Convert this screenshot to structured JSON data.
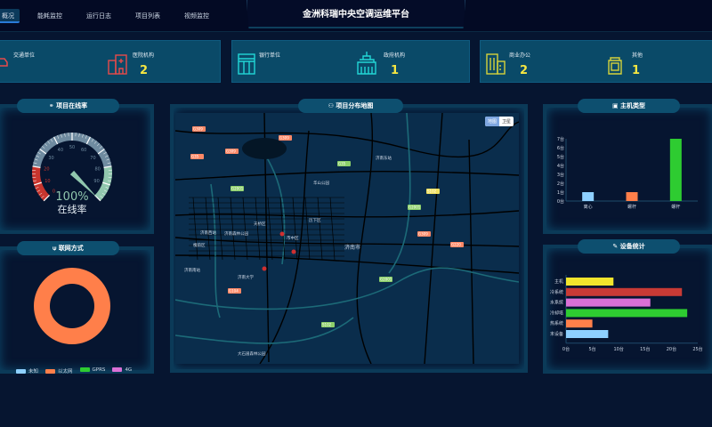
{
  "header": {
    "title": "金洲科瑞中央空调运维平台",
    "tabs": [
      "概况",
      "能耗监控",
      "运行日志",
      "项目列表",
      "视频监控"
    ],
    "active_tab": "概况"
  },
  "stats": [
    {
      "label": "交通单位",
      "value": "",
      "icon": "car-icon",
      "color": "#e84a4a"
    },
    {
      "label": "医院机构",
      "value": "2",
      "icon": "hospital-icon",
      "color": "#e84a4a"
    },
    {
      "label": "银行单位",
      "value": "",
      "icon": "bank-icon",
      "color": "#22d6d6"
    },
    {
      "label": "政府机构",
      "value": "1",
      "icon": "government-icon",
      "color": "#22d6d6"
    },
    {
      "label": "商业办公",
      "value": "2",
      "icon": "office-icon",
      "color": "#d6d23a"
    },
    {
      "label": "其他",
      "value": "1",
      "icon": "building-icon",
      "color": "#d6d23a"
    }
  ],
  "online": {
    "title": "项目在线率",
    "value_text": "100%",
    "label": "在线率",
    "value": 100,
    "ticks": [
      "0",
      "10",
      "20",
      "30",
      "40",
      "50",
      "60",
      "70",
      "80",
      "90"
    ],
    "colors": {
      "low": "#c8352e",
      "mid": "#6f8ba0",
      "high": "#91c7ae"
    }
  },
  "network": {
    "title": "联网方式",
    "legend": [
      {
        "name": "未知",
        "color": "#8ed0ff"
      },
      {
        "name": "以太网",
        "color": "#ff7f4a"
      },
      {
        "name": "GPRS",
        "color": "#2ecc31"
      },
      {
        "name": "4G",
        "color": "#da70d6"
      }
    ],
    "values": [
      0,
      1,
      0,
      0
    ]
  },
  "map": {
    "title": "项目分布地图",
    "toggle": [
      "地图",
      "卫星"
    ],
    "active": "地图",
    "labels": [
      "天桥区",
      "历下区",
      "济南市",
      "槐荫区",
      "市中区",
      "济南西站",
      "济南东站",
      "济南大学",
      "济南森林公园",
      "华山公园",
      "济南南站",
      "大石崮森林公园"
    ],
    "road_labels": [
      "G309",
      "G309",
      "G309",
      "G35",
      "G35",
      "G2001",
      "G2001",
      "G2001",
      "S102",
      "S102",
      "G104",
      "G309",
      "G220"
    ]
  },
  "host_types": {
    "title": "主机类型",
    "chart_data": {
      "type": "bar",
      "categories": [
        "离心",
        "螺杆",
        "螺杆"
      ],
      "values": [
        1,
        1,
        7
      ],
      "colors": [
        "#8ed0ff",
        "#ff7f4a",
        "#2ecc31"
      ],
      "yticks": [
        "0台",
        "1台",
        "2台",
        "3台",
        "4台",
        "5台",
        "6台",
        "7台"
      ],
      "ylim": [
        0,
        7
      ]
    }
  },
  "devices": {
    "title": "设备统计",
    "chart_data": {
      "type": "bar",
      "orientation": "horizontal",
      "categories": [
        "主机",
        "冷系统",
        "水系统",
        "冷却塔",
        "热系统",
        "末设备"
      ],
      "values": [
        9,
        22,
        16,
        23,
        5,
        8
      ],
      "colors": [
        "#f2e52c",
        "#c83a35",
        "#da70d6",
        "#2ecc31",
        "#ff7f4a",
        "#8ed0ff"
      ],
      "xticks": [
        "0台",
        "5台",
        "10台",
        "15台",
        "20台",
        "25台"
      ],
      "xlim": [
        0,
        25
      ]
    }
  }
}
